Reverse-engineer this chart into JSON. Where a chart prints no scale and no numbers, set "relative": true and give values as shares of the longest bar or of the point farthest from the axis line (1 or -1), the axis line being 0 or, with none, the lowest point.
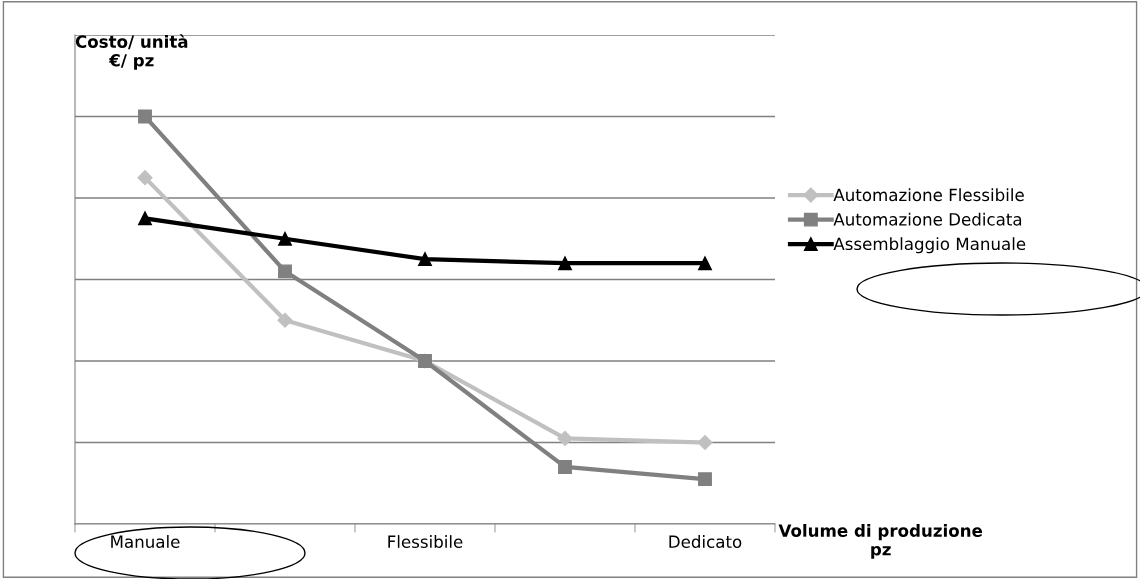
{
  "chart_data": {
    "type": "line",
    "relative": true,
    "ylabel": "Costo/ unità\n€/ pz",
    "xlabel": "Volume di produzione\npz",
    "categories": [
      "Manuale",
      null,
      "Flessibile",
      null,
      "Dedicato"
    ],
    "series": [
      {
        "name": "Automazione Flessibile",
        "color": "#c0c0c0",
        "marker": "diamond",
        "values": [
          0.85,
          0.5,
          0.4,
          0.21,
          0.2
        ]
      },
      {
        "name": "Automazione Dedicata",
        "color": "#808080",
        "marker": "square",
        "values": [
          1,
          0.62,
          0.4,
          0.14,
          0.11
        ]
      },
      {
        "name": "Assemblaggio Manuale",
        "color": "#000000",
        "marker": "triangle",
        "values": [
          0.75,
          0.7,
          0.65,
          0.64,
          0.64
        ]
      }
    ],
    "grid": "y",
    "legend": "right",
    "line_style": "solid"
  }
}
